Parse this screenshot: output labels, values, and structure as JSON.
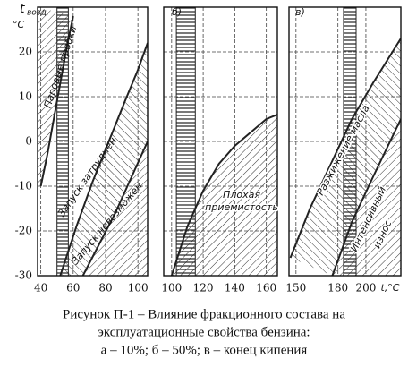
{
  "chart_data": [
    {
      "type": "line",
      "ylabel": "t",
      "ylabel_sub": "возд,",
      "yunit": "°C",
      "xlim": [
        38,
        106
      ],
      "ylim": [
        -30,
        30
      ],
      "xticks": [
        40,
        60,
        80,
        100
      ],
      "yticks": [
        -30,
        -20,
        -10,
        0,
        10,
        20
      ],
      "band": [
        50,
        57
      ],
      "series": [
        {
          "x": [
            40,
            44,
            48,
            52,
            56,
            60
          ],
          "values": [
            -10,
            -3,
            5,
            13,
            21,
            28
          ],
          "color": "#222"
        },
        {
          "x": [
            52,
            62,
            72,
            82,
            92,
            100,
            106
          ],
          "values": [
            -30,
            -19,
            -9,
            0,
            9,
            16,
            22
          ],
          "color": "#222"
        },
        {
          "x": [
            66,
            76,
            86,
            96,
            106
          ],
          "values": [
            -30,
            -23,
            -16,
            -8,
            0
          ],
          "color": "#222"
        }
      ],
      "annotations": [
        "Паровые пробки",
        "Запуск затруднен",
        "Запуск невозможен"
      ]
    },
    {
      "type": "line",
      "title": "б)",
      "sharey": true,
      "xlim": [
        95,
        167
      ],
      "ylim": [
        -30,
        30
      ],
      "xticks": [
        100,
        120,
        140,
        160
      ],
      "band": [
        103,
        115
      ],
      "series": [
        {
          "x": [
            100,
            110,
            120,
            130,
            140,
            150,
            160,
            167
          ],
          "values": [
            -30,
            -19,
            -11,
            -5,
            -1,
            2,
            5,
            6
          ],
          "color": "#222"
        }
      ],
      "annotations": [
        "Плохая",
        "приемистость"
      ]
    },
    {
      "type": "line",
      "title": "в)",
      "sharey": true,
      "xlabel": "t,°C",
      "xlim": [
        145,
        225
      ],
      "ylim": [
        -30,
        30
      ],
      "xticks": [
        150,
        180,
        200
      ],
      "band": [
        184,
        193
      ],
      "series": [
        {
          "x": [
            146,
            160,
            175,
            190,
            205,
            225
          ],
          "values": [
            -26,
            -15,
            -5,
            5,
            13,
            23
          ],
          "color": "#222"
        },
        {
          "x": [
            176,
            190,
            205,
            225
          ],
          "values": [
            -30,
            -18,
            -8,
            5
          ],
          "color": "#222"
        }
      ],
      "annotations": [
        "Разжижение масла",
        "Интенсивный",
        "износ"
      ]
    }
  ],
  "caption": [
    "Рисунок П-1 – Влияние фракционного состава на",
    "эксплуатационные свойства бензина:",
    "а – 10%; б – 50%; в – конец кипения"
  ]
}
